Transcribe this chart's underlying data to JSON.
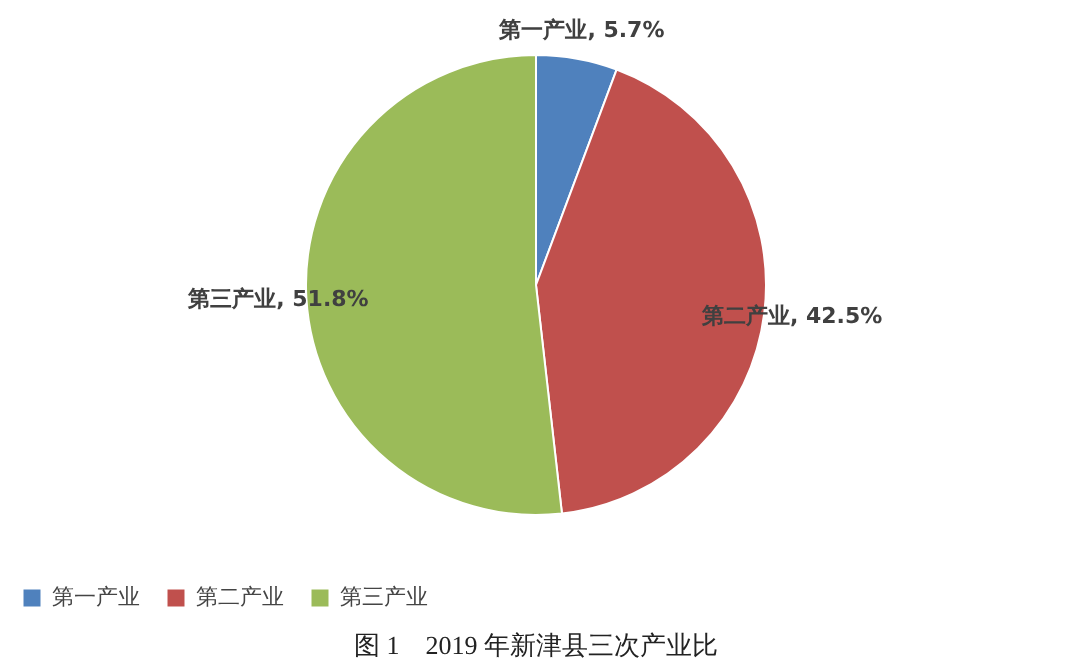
{
  "chart_data": {
    "type": "pie",
    "title": "图 1　2019 年新津县三次产业比",
    "categories": [
      "第一产业",
      "第二产业",
      "第三产业"
    ],
    "values": [
      5.7,
      42.5,
      51.8
    ],
    "colors": [
      "#4f81bd",
      "#c0504d",
      "#9bbb59"
    ],
    "value_labels": [
      "第一产业, 5.7%",
      "第二产业, 42.5%",
      "第三产业, 51.8%"
    ],
    "legend": "bottom"
  }
}
